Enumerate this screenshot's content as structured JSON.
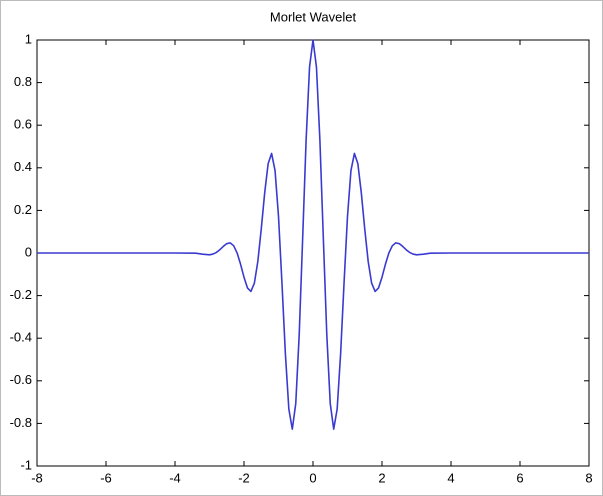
{
  "chart_data": {
    "type": "line",
    "title": "Morlet Wavelet",
    "x": [
      -8,
      -7,
      -6,
      -5,
      -4,
      -3.4,
      -3.2,
      -3.0,
      -2.9,
      -2.8,
      -2.7,
      -2.6,
      -2.5,
      -2.4,
      -2.3,
      -2.2,
      -2.1,
      -2.0,
      -1.9,
      -1.8,
      -1.7,
      -1.6,
      -1.5,
      -1.4,
      -1.3,
      -1.2,
      -1.1,
      -1.0,
      -0.9,
      -0.8,
      -0.7,
      -0.6,
      -0.5,
      -0.4,
      -0.3,
      -0.2,
      -0.1,
      0,
      0.1,
      0.2,
      0.3,
      0.4,
      0.5,
      0.6,
      0.7,
      0.8,
      0.9,
      1.0,
      1.1,
      1.2,
      1.3,
      1.4,
      1.5,
      1.6,
      1.7,
      1.8,
      1.9,
      2.0,
      2.1,
      2.2,
      2.3,
      2.4,
      2.5,
      2.6,
      2.7,
      2.8,
      2.9,
      3.0,
      3.2,
      3.4,
      4,
      5,
      6,
      7,
      8
    ],
    "series": [
      {
        "color": "#3a3ad0",
        "values": [
          0,
          0,
          0,
          0,
          0,
          -0.0008,
          -0.0057,
          -0.0084,
          -0.005,
          0.0027,
          0.0155,
          0.0309,
          0.0438,
          0.0474,
          0.0343,
          0.0004,
          -0.0524,
          -0.1136,
          -0.164,
          -0.1803,
          -0.1419,
          -0.0404,
          0.1125,
          0.2829,
          0.4195,
          0.4674,
          0.387,
          0.1721,
          -0.1406,
          -0.4746,
          -0.733,
          -0.8269,
          -0.707,
          -0.3841,
          0.0676,
          0.5296,
          0.8732,
          1,
          0.8732,
          0.5296,
          0.0676,
          -0.3841,
          -0.707,
          -0.8269,
          -0.733,
          -0.4746,
          -0.1406,
          0.1721,
          0.387,
          0.4674,
          0.4195,
          0.2829,
          0.1125,
          -0.0404,
          -0.1419,
          -0.1803,
          -0.164,
          -0.1136,
          -0.0524,
          0.0004,
          0.0343,
          0.0474,
          0.0438,
          0.0309,
          0.0155,
          0.0027,
          -0.005,
          -0.0084,
          -0.0057,
          -0.0008,
          0,
          0,
          0,
          0,
          0
        ]
      }
    ],
    "xlim": [
      -8,
      8
    ],
    "xticks": [
      -8,
      -6,
      -4,
      -2,
      0,
      2,
      4,
      6,
      8
    ],
    "ylim": [
      -1,
      1
    ],
    "yticks": [
      -1,
      -0.8,
      -0.6,
      -0.4,
      -0.2,
      0,
      0.2,
      0.4,
      0.6,
      0.8,
      1
    ]
  }
}
